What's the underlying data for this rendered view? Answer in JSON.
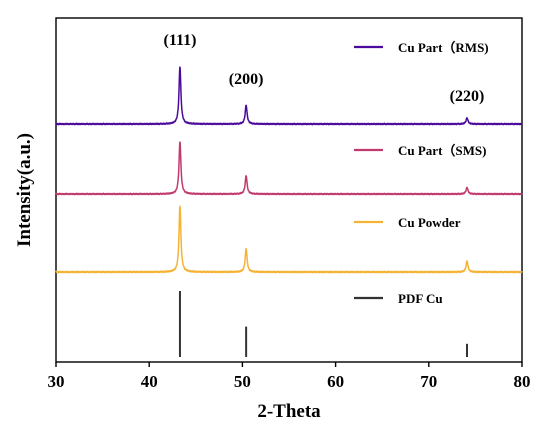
{
  "chart_data": {
    "type": "line",
    "xlabel": "2-Theta",
    "ylabel": "Intensity(a.u.)",
    "xlim": [
      30,
      80
    ],
    "xticks": [
      30,
      40,
      50,
      60,
      70,
      80
    ],
    "y_scale": "arbitrary, stacked with vertical offsets",
    "grid": false,
    "legend_placement": "right of each trace",
    "annotations": [
      {
        "text": "(111)",
        "x": 43.3
      },
      {
        "text": "(200)",
        "x": 50.4
      },
      {
        "text": "(220)",
        "x": 74.1
      }
    ],
    "series": [
      {
        "name": "Cu Part（RMS)",
        "color": "#4B0A9B",
        "style": "line",
        "baseline": 0.5,
        "peaks": [
          {
            "x": 43.3,
            "height": 0.85
          },
          {
            "x": 50.4,
            "height": 0.28
          },
          {
            "x": 74.1,
            "height": 0.09
          }
        ]
      },
      {
        "name": "Cu Part（SMS)",
        "color": "#C03A6E",
        "style": "line",
        "baseline": 0.5,
        "peaks": [
          {
            "x": 43.3,
            "height": 0.8
          },
          {
            "x": 50.4,
            "height": 0.28
          },
          {
            "x": 74.1,
            "height": 0.1
          }
        ]
      },
      {
        "name": "Cu Powder",
        "color": "#F5B335",
        "style": "line",
        "baseline": 0.5,
        "peaks": [
          {
            "x": 43.3,
            "height": 0.9
          },
          {
            "x": 50.4,
            "height": 0.32
          },
          {
            "x": 74.1,
            "height": 0.15
          }
        ]
      },
      {
        "name": "PDF  Cu",
        "color": "#333333",
        "style": "sticks",
        "peaks": [
          {
            "x": 43.3,
            "height": 1.0
          },
          {
            "x": 50.4,
            "height": 0.46
          },
          {
            "x": 74.1,
            "height": 0.2
          }
        ]
      }
    ]
  }
}
